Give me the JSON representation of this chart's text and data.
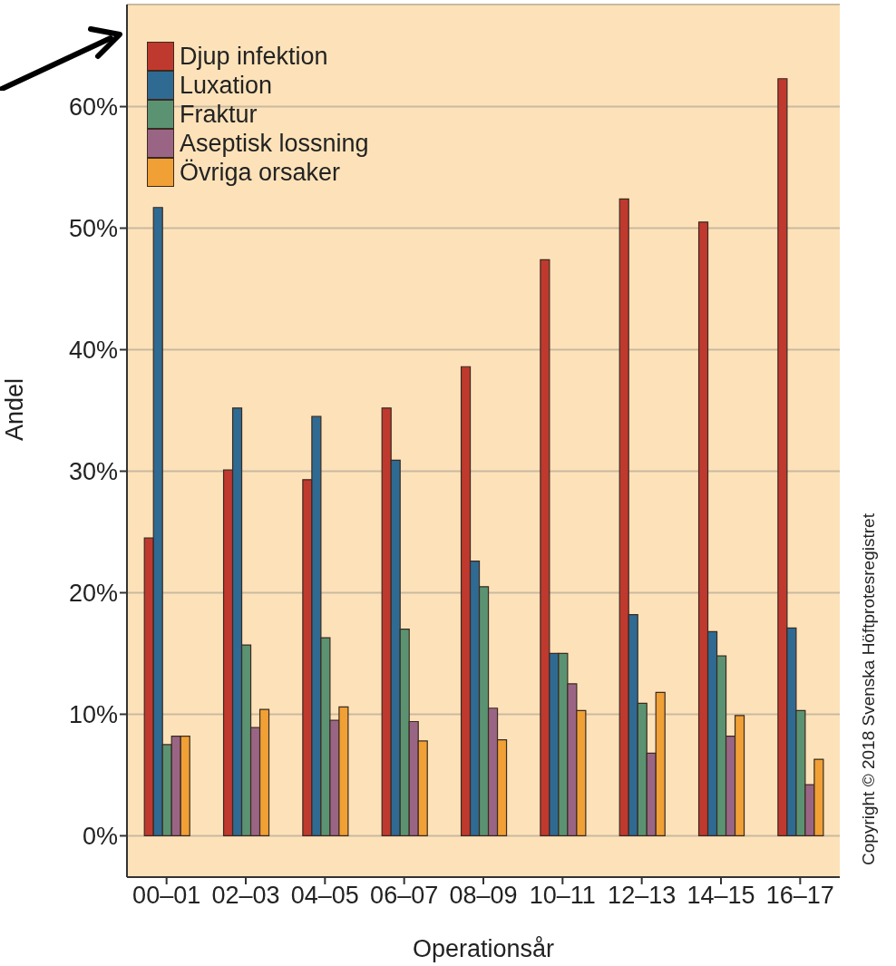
{
  "chart_data": {
    "type": "bar",
    "categories": [
      "00–01",
      "02–03",
      "04–05",
      "06–07",
      "08–09",
      "10–11",
      "12–13",
      "14–15",
      "16–17"
    ],
    "series": [
      {
        "name": "Djup infektion",
        "color": "#c0392e",
        "values": [
          24.5,
          30.1,
          29.3,
          35.2,
          38.6,
          47.4,
          52.4,
          50.5,
          62.3
        ]
      },
      {
        "name": "Luxation",
        "color": "#2f6a93",
        "values": [
          51.7,
          35.2,
          34.5,
          30.9,
          22.6,
          15.0,
          18.2,
          16.8,
          17.1
        ]
      },
      {
        "name": "Fraktur",
        "color": "#5b9372",
        "values": [
          7.5,
          15.7,
          16.3,
          17.0,
          20.5,
          15.0,
          10.9,
          14.8,
          10.3
        ]
      },
      {
        "name": "Aseptisk lossning",
        "color": "#9a6585",
        "values": [
          8.2,
          8.9,
          9.5,
          9.4,
          10.5,
          12.5,
          6.8,
          8.2,
          4.2
        ]
      },
      {
        "name": "Övriga orsaker",
        "color": "#f0a035",
        "values": [
          8.2,
          10.4,
          10.6,
          7.8,
          7.9,
          10.3,
          11.8,
          9.9,
          6.3
        ]
      }
    ],
    "xlabel": "Operationsår",
    "ylabel": "Andel",
    "ylim": [
      -3.4,
      68.4
    ],
    "yticks": [
      {
        "value": 0,
        "label": "0%"
      },
      {
        "value": 10,
        "label": "10%"
      },
      {
        "value": 20,
        "label": "20%"
      },
      {
        "value": 30,
        "label": "30%"
      },
      {
        "value": 40,
        "label": "40%"
      },
      {
        "value": 50,
        "label": "50%"
      },
      {
        "value": 60,
        "label": "60%"
      }
    ],
    "grid": "y",
    "legend": "top left",
    "annotations": [
      "Copyright © 2018 Svenska Höftprotesregistret"
    ]
  }
}
